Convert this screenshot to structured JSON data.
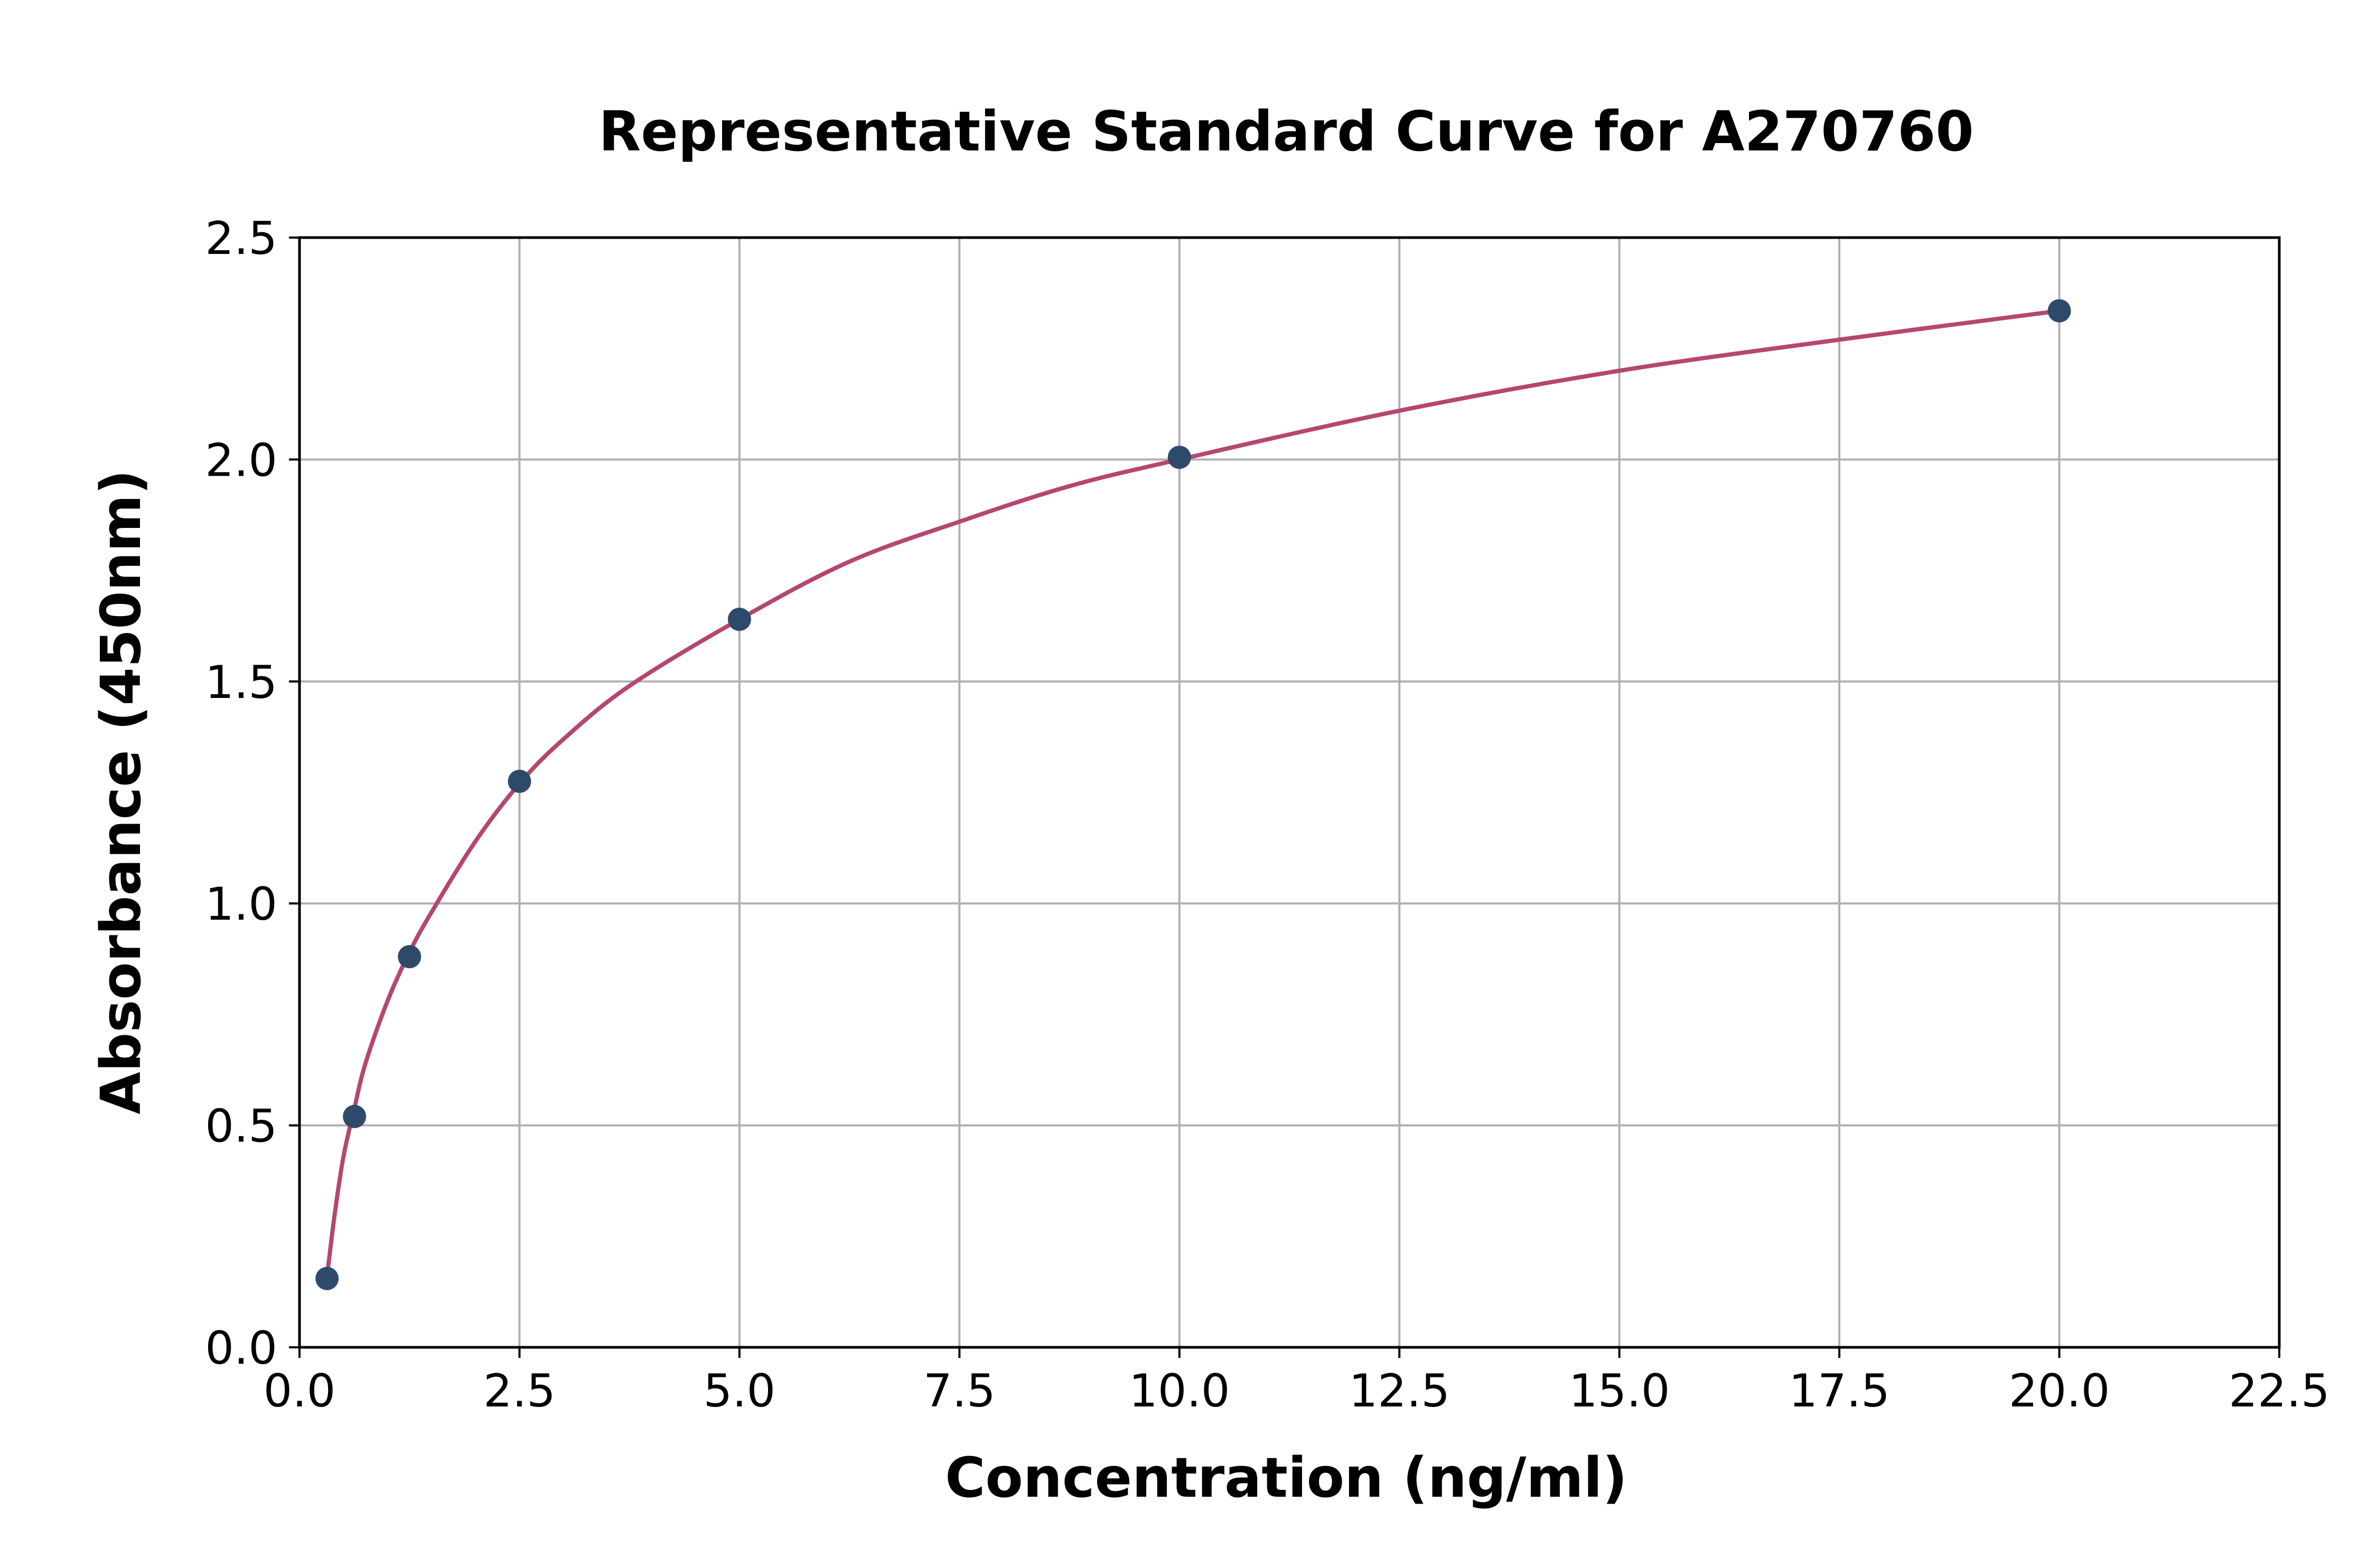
{
  "chart_data": {
    "type": "scatter",
    "title": "Representative Standard Curve for A270760",
    "xlabel": "Concentration (ng/ml)",
    "ylabel": "Absorbance (450nm)",
    "xlim": [
      0,
      22.5
    ],
    "ylim": [
      0,
      2.5
    ],
    "x_ticks": [
      0.0,
      2.5,
      5.0,
      7.5,
      10.0,
      12.5,
      15.0,
      17.5,
      20.0,
      22.5
    ],
    "x_tick_labels": [
      "0.0",
      "2.5",
      "5.0",
      "7.5",
      "10.0",
      "12.5",
      "15.0",
      "17.5",
      "20.0",
      "22.5"
    ],
    "y_ticks": [
      0.0,
      0.5,
      1.0,
      1.5,
      2.0,
      2.5
    ],
    "y_tick_labels": [
      "0.0",
      "0.5",
      "1.0",
      "1.5",
      "2.0",
      "2.5"
    ],
    "grid": true,
    "series": [
      {
        "kind": "points",
        "x": [
          0.313,
          0.625,
          1.25,
          2.5,
          5.0,
          10.0,
          20.0
        ],
        "y": [
          0.155,
          0.52,
          0.88,
          1.275,
          1.64,
          2.005,
          2.335
        ]
      },
      {
        "kind": "fit-curve",
        "x": [
          0.313,
          0.4,
          0.5,
          0.625,
          0.75,
          1.0,
          1.25,
          1.5,
          2.0,
          2.5,
          3.0,
          3.75,
          5.0,
          6.25,
          7.5,
          8.75,
          10.0,
          12.5,
          15.0,
          17.5,
          20.0
        ],
        "y": [
          0.16,
          0.3,
          0.43,
          0.54,
          0.64,
          0.78,
          0.89,
          0.98,
          1.14,
          1.27,
          1.37,
          1.49,
          1.64,
          1.77,
          1.86,
          1.94,
          2.0,
          2.11,
          2.2,
          2.27,
          2.335
        ]
      }
    ],
    "colors": {
      "points": "#2e4a6b",
      "curve": "#b5476f",
      "grid": "#b0b0b0",
      "axes": "#000000"
    }
  }
}
